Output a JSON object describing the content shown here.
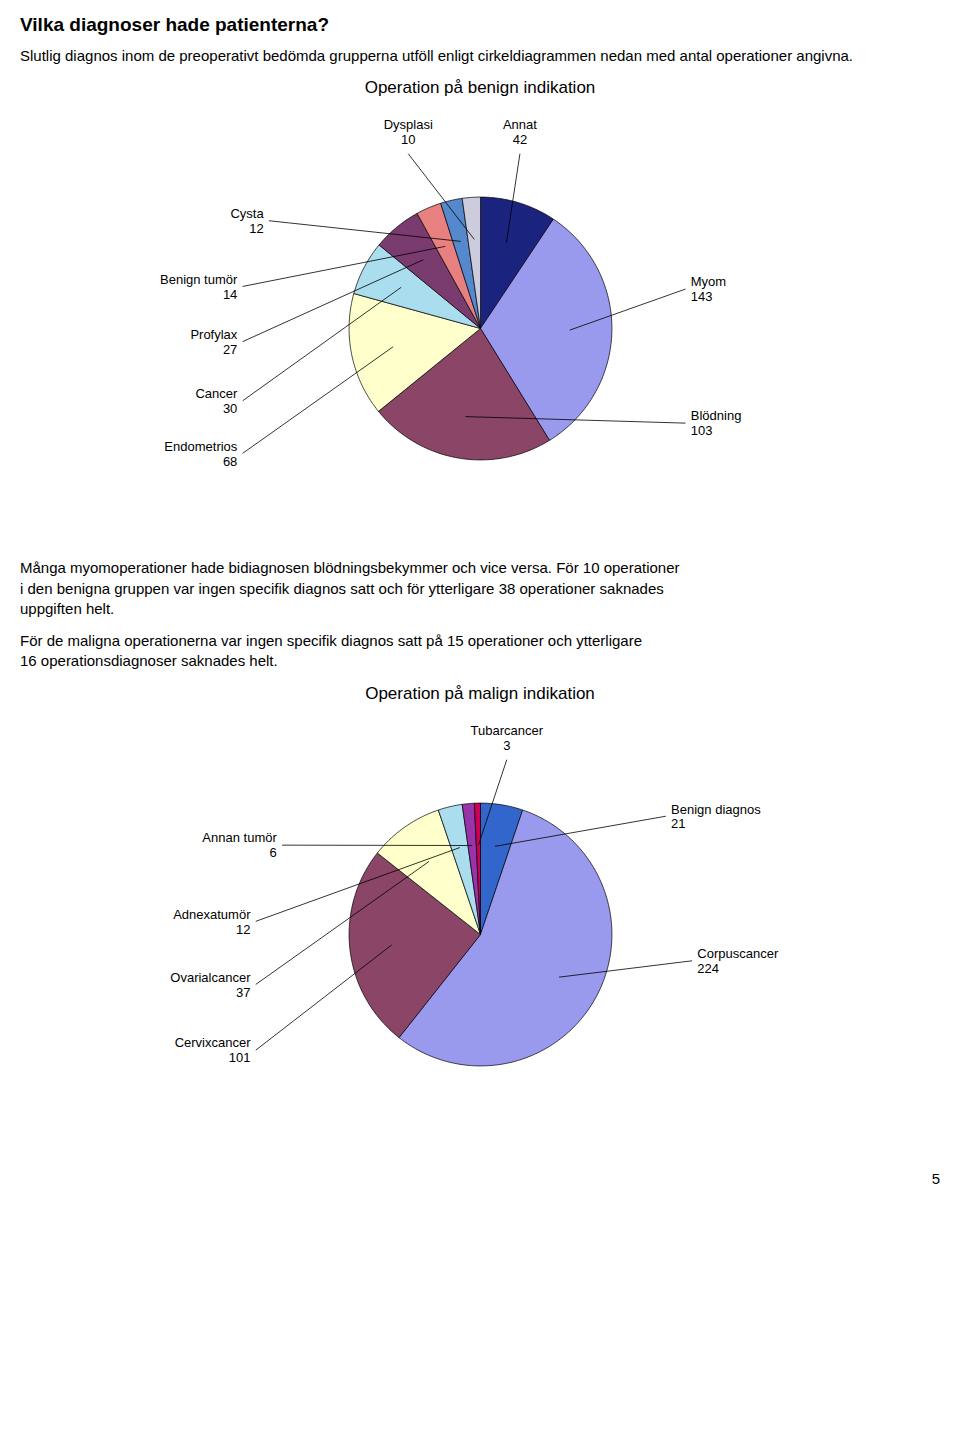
{
  "heading": "Vilka diagnoser hade patienterna?",
  "subtitle": "Slutlig diagnos inom de preoperativt bedömda grupperna utföll enligt cirkeldiagrammen nedan med antal operationer angivna.",
  "notes": [
    "Många myomoperationer hade bidiagnosen blödningsbekymmer och vice versa. För 10 operationer\ni den benigna gruppen var ingen specifik diagnos satt och för ytterligare 38 operationer saknades\nuppgiften helt.",
    "För de maligna operationerna var ingen specifik diagnos satt på 15 operationer och ytterligare\n16 operationsdiagnoser saknades helt."
  ],
  "page": "5",
  "chart_data": [
    {
      "type": "pie",
      "title": "Operation på benign indikation",
      "categories": [
        "Annat",
        "Myom",
        "Blödning",
        "Endometrios",
        "Cancer",
        "Profylax",
        "Benign tumör",
        "Cysta",
        "Dysplasi"
      ],
      "values": [
        42,
        143,
        103,
        68,
        30,
        27,
        14,
        12,
        10
      ],
      "colors": [
        "#1a237e",
        "#9999ee",
        "#8B4566",
        "#ffffcc",
        "#aaddee",
        "#7a3b6e",
        "#e88080",
        "#5588cc",
        "#ccccdd"
      ],
      "data_labels": true
    },
    {
      "type": "pie",
      "title": "Operation på malign indikation",
      "categories": [
        "Benign diagnos",
        "Corpuscancer",
        "Cervixcancer",
        "Ovarialcancer",
        "Adnexatumör",
        "Annan tumör",
        "Tubarcancer"
      ],
      "values": [
        21,
        224,
        101,
        37,
        12,
        6,
        3
      ],
      "colors": [
        "#3366cc",
        "#9999ee",
        "#8B4566",
        "#ffffcc",
        "#aaddee",
        "#9933aa",
        "#cc0055"
      ],
      "data_labels": true
    }
  ]
}
